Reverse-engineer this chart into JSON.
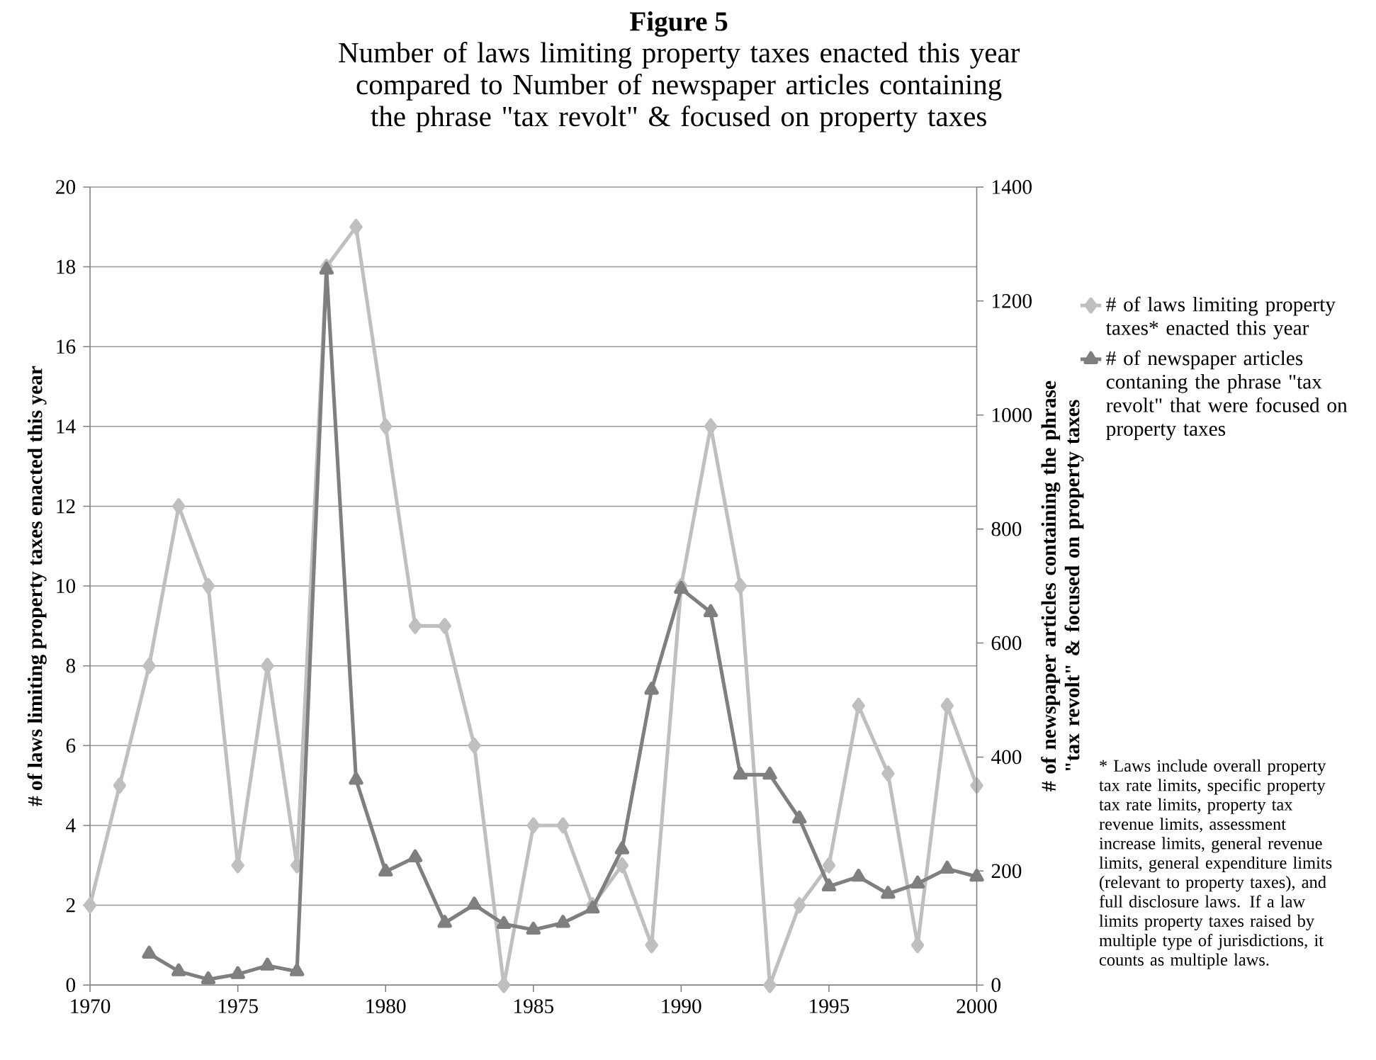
{
  "chart_data": {
    "type": "line",
    "title": "Figure 5",
    "subtitle": "Number of laws limiting property taxes enacted this year compared to Number of newspaper articles containing the phrase \"tax revolt\" & focused on property taxes",
    "ylabel": "# of laws limiting property taxes enacted this year",
    "y2label": "# of newspaper articles containing the phrase \"tax revolt\" & focused on property taxes",
    "x": [
      1970,
      1971,
      1972,
      1973,
      1974,
      1975,
      1976,
      1977,
      1978,
      1979,
      1980,
      1981,
      1982,
      1983,
      1984,
      1985,
      1986,
      1987,
      1988,
      1989,
      1990,
      1991,
      1992,
      1993,
      1994,
      1995,
      1996,
      1997,
      1998,
      1999,
      2000
    ],
    "series": [
      {
        "name": "# of laws limiting property taxes* enacted this year",
        "color": "#bfbfbf",
        "marker": "diamond",
        "values": [
          2,
          5,
          8,
          12,
          10,
          3,
          8,
          3,
          18,
          19,
          14,
          9,
          9,
          6,
          0,
          4,
          4,
          2,
          3,
          1,
          10,
          14,
          10,
          0,
          2,
          3,
          7,
          5.3,
          1,
          7,
          5
        ]
      },
      {
        "name": "# of newspaper articles contaning the phrase \"tax revolt\" that were focused on property taxes",
        "color": "#7f7f7f",
        "marker": "triangle",
        "axis": "y2",
        "values": [
          null,
          null,
          55,
          24,
          10,
          19,
          34,
          24,
          1255,
          360,
          199,
          224,
          109,
          141,
          107,
          97,
          109,
          134,
          238,
          518,
          695,
          654,
          369,
          369,
          292,
          173,
          190,
          160,
          178,
          204,
          190
        ]
      }
    ],
    "xlim": [
      1970,
      2000
    ],
    "xticks": [
      1970,
      1975,
      1980,
      1985,
      1990,
      1995,
      2000
    ],
    "ylim": [
      0,
      20
    ],
    "yticks": [
      0,
      2,
      4,
      6,
      8,
      10,
      12,
      14,
      16,
      18,
      20
    ],
    "y2lim": [
      0,
      1400
    ],
    "y2ticks": [
      0,
      200,
      400,
      600,
      800,
      1000,
      1200,
      1400
    ],
    "grid": "y",
    "legend": "right",
    "line_style": "solid",
    "annotations": [
      "* Laws include overall property tax rate limits, specific property tax rate limits, property tax revenue limits, assessment increase limits, general revenue limits, general expenditure limits (relevant to property taxes), and full disclosure laws.   If a law limits property taxes raised by multiple type of jurisdictions, it counts as multiple laws."
    ]
  }
}
